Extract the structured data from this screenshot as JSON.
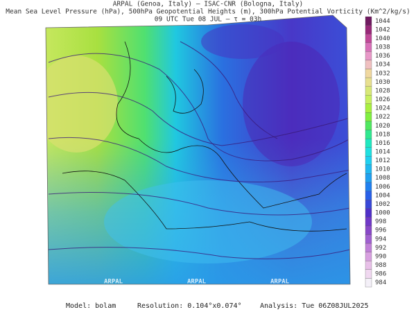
{
  "header": {
    "line1": "ARPAL (Genoa, Italy)  –  ISAC-CNR (Bologna, Italy)",
    "line2": "Mean Sea Level Pressure (hPa), 500hPa Geopotential Heights (m), 300hPa Potential Vorticity (Km^2/kg/s)",
    "line3": "09 UTC Tue 08 JUL  –  τ = 03h"
  },
  "watermark": "ARPAL",
  "colorbar": {
    "labels": [
      1044,
      1042,
      1040,
      1038,
      1036,
      1034,
      1032,
      1030,
      1028,
      1026,
      1024,
      1022,
      1020,
      1018,
      1016,
      1014,
      1012,
      1010,
      1008,
      1006,
      1004,
      1002,
      1000,
      998,
      996,
      994,
      992,
      990,
      988,
      986,
      984
    ]
  },
  "footer": {
    "model": "Model: bolam",
    "resolution": "Resolution: 0.104°x0.074°",
    "analysis": "Analysis: Tue 06Z08JUL2025"
  }
}
